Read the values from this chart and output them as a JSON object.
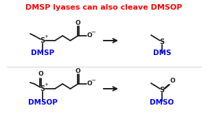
{
  "title": "DMSP lyases can also cleave DMSOP",
  "title_color": "#FF0000",
  "title_fontsize": 8.0,
  "bg_color": "#FFFFFF",
  "border_color": "#AAAAAA",
  "label_color": "#0000FF",
  "label_fontsize": 7.5,
  "bond_color": "#1A1A1A",
  "labels": {
    "dmsp": "DMSP",
    "dms": "DMS",
    "dmsop": "DMSOP",
    "dmso": "DMSO"
  },
  "arrow_color": "#1A1A1A"
}
